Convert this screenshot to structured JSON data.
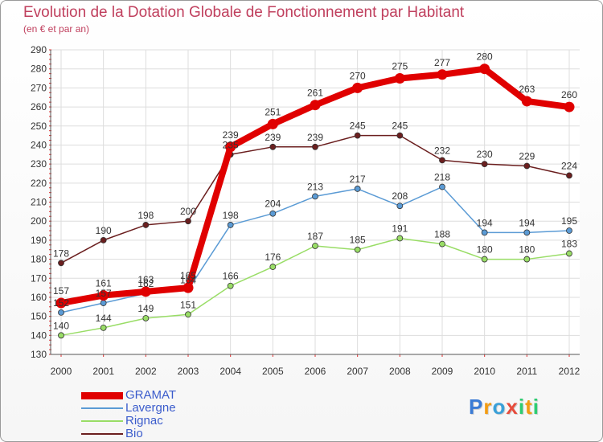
{
  "chart_data": {
    "type": "line",
    "title": "Evolution de la Dotation Globale de Fonctionnement par Habitant",
    "subtitle": "(en € et par an)",
    "xlabel": "",
    "ylabel": "",
    "ylim": [
      130,
      290
    ],
    "y_ticks": [
      130,
      140,
      150,
      160,
      170,
      180,
      190,
      200,
      210,
      220,
      230,
      240,
      250,
      260,
      270,
      280,
      290
    ],
    "categories": [
      "2000",
      "2001",
      "2002",
      "2003",
      "2004",
      "2005",
      "2006",
      "2007",
      "2008",
      "2009",
      "2010",
      "2011",
      "2012"
    ],
    "grid": true,
    "legend_position": "bottom-left",
    "series": [
      {
        "name": "GRAMAT",
        "color": "#e00000",
        "values": [
          157,
          161,
          163,
          165,
          239,
          251,
          261,
          270,
          275,
          277,
          280,
          263,
          260
        ]
      },
      {
        "name": "Lavergne",
        "color": "#5b9bd5",
        "values": [
          152,
          157,
          162,
          164,
          198,
          204,
          213,
          217,
          208,
          218,
          194,
          194,
          195
        ]
      },
      {
        "name": "Rignac",
        "color": "#99dd66",
        "values": [
          140,
          144,
          149,
          151,
          166,
          176,
          187,
          185,
          191,
          188,
          180,
          180,
          183
        ]
      },
      {
        "name": "Bio",
        "color": "#6b1f1f",
        "values": [
          178,
          190,
          198,
          200,
          235,
          239,
          239,
          245,
          245,
          232,
          230,
          229,
          224
        ]
      }
    ]
  },
  "logo": {
    "letters": [
      "P",
      "r",
      "o",
      "x",
      "i",
      "t",
      "i"
    ],
    "colors": [
      "#3a7bd5",
      "#f39c12",
      "#3aa0d8",
      "#e74c3c",
      "#2ecc71",
      "#f39c12",
      "#2ecc71"
    ]
  }
}
